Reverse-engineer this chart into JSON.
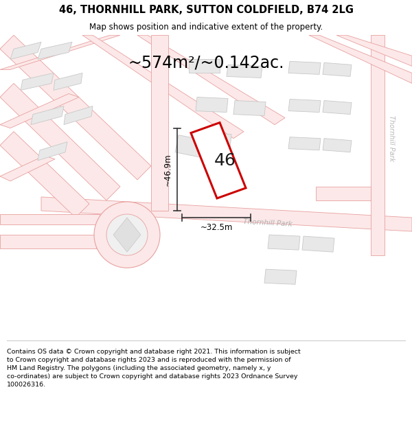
{
  "title": "46, THORNHILL PARK, SUTTON COLDFIELD, B74 2LG",
  "subtitle": "Map shows position and indicative extent of the property.",
  "area_text": "~574m²/~0.142ac.",
  "property_number": "46",
  "dim_width": "~32.5m",
  "dim_height": "~46.9m",
  "background_color": "#ffffff",
  "map_bg": "#ffffff",
  "road_color": "#fce8e8",
  "road_line_color": "#e8a0a0",
  "building_fill": "#e8e8e8",
  "building_edge": "#c8c8c8",
  "property_fill": "#ffffff",
  "property_edge": "#cc0000",
  "text_color": "#000000",
  "dim_line_color": "#333333",
  "footer_text": "Contains OS data © Crown copyright and database right 2021. This information is subject to Crown copyright and database rights 2023 and is reproduced with the permission of HM Land Registry. The polygons (including the associated geometry, namely x, y co-ordinates) are subject to Crown copyright and database rights 2023 Ordnance Survey 100026316.",
  "road_label_1": "Thornhill Park",
  "road_label_2": "Thornhill Park"
}
